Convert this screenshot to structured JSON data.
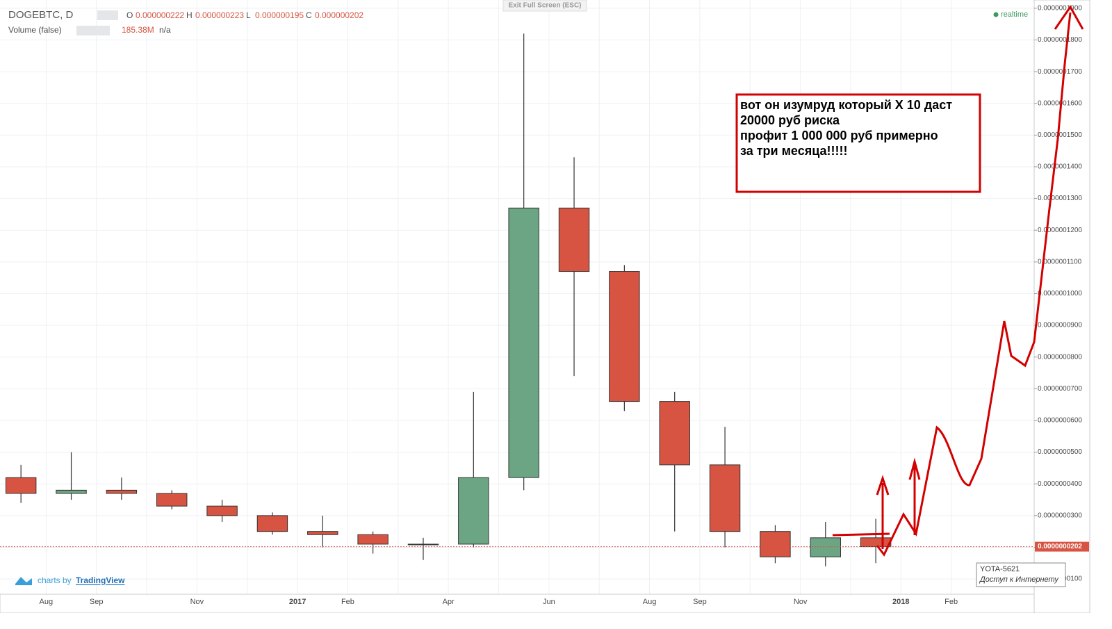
{
  "chart_data": {
    "type": "candlestick",
    "categories": [
      null,
      "Aug",
      "Sep",
      null,
      "Nov",
      null,
      "2017",
      "Feb",
      null,
      "Apr",
      null,
      "Jun",
      null,
      "Aug",
      "Sep",
      null,
      "Nov",
      null,
      "2018",
      "Feb"
    ],
    "open": [
      4.2e-08,
      3.7e-08,
      3.8e-08,
      3.7e-08,
      3.3e-08,
      3e-08,
      2.5e-08,
      2.4e-08,
      2.1e-08,
      2.1e-08,
      4.2e-08,
      1.27e-07,
      1.07e-07,
      6.6e-08,
      4.6e-08,
      2.5e-08,
      1.7e-08,
      2.3e-08,
      null,
      null
    ],
    "high": [
      4.6e-08,
      5e-08,
      4.2e-08,
      3.8e-08,
      3.5e-08,
      3.1e-08,
      3e-08,
      2.5e-08,
      2.3e-08,
      6.9e-08,
      1.82e-07,
      1.43e-07,
      1.09e-07,
      6.9e-08,
      5.8e-08,
      2.7e-08,
      2.8e-08,
      2.9e-08,
      null,
      null
    ],
    "low": [
      3.4e-08,
      3.5e-08,
      3.5e-08,
      3.2e-08,
      2.8e-08,
      2.4e-08,
      2e-08,
      1.8e-08,
      1.6e-08,
      2e-08,
      3.8e-08,
      7.4e-08,
      6.3e-08,
      2.5e-08,
      2e-08,
      1.5e-08,
      1.4e-08,
      1.5e-08,
      null,
      null
    ],
    "close": [
      3.7e-08,
      3.8e-08,
      3.7e-08,
      3.3e-08,
      3e-08,
      2.5e-08,
      2.4e-08,
      2.1e-08,
      2.1e-08,
      4.2e-08,
      1.27e-07,
      1.07e-07,
      6.6e-08,
      4.6e-08,
      2.5e-08,
      1.7e-08,
      2.3e-08,
      2.02e-08,
      null,
      null
    ],
    "up_color": "#6ba583",
    "down_color": "#d75442",
    "ylim": [
      5.2e-09,
      1.926e-07
    ],
    "yticks": [
      {
        "value": 1e-08,
        "label": "0.0000000100"
      },
      {
        "value": 2e-08,
        "label": "0.0000000200"
      },
      {
        "value": 3e-08,
        "label": "0.0000000300"
      },
      {
        "value": 4e-08,
        "label": "0.0000000400"
      },
      {
        "value": 5e-08,
        "label": "0.0000000500"
      },
      {
        "value": 6e-08,
        "label": "0.0000000600"
      },
      {
        "value": 7e-08,
        "label": "0.0000000700"
      },
      {
        "value": 8e-08,
        "label": "0.0000000800"
      },
      {
        "value": 9e-08,
        "label": "0.0000000900"
      },
      {
        "value": 1e-07,
        "label": "0.0000001000"
      },
      {
        "value": 1.1e-07,
        "label": "0.0000001100"
      },
      {
        "value": 1.2e-07,
        "label": "0.0000001200"
      },
      {
        "value": 1.3e-07,
        "label": "0.0000001300"
      },
      {
        "value": 1.4e-07,
        "label": "0.0000001400"
      },
      {
        "value": 1.5e-07,
        "label": "0.0000001500"
      },
      {
        "value": 1.6e-07,
        "label": "0.0000001600"
      },
      {
        "value": 1.7e-07,
        "label": "0.0000001700"
      },
      {
        "value": 1.8e-07,
        "label": "0.0000001800"
      },
      {
        "value": 1.9e-07,
        "label": "0.0000001900"
      }
    ],
    "grid": true,
    "last_price": {
      "value": 2.02e-08,
      "label": "0.0000000202"
    },
    "annotation": [
      "вот он изумруд  который Х 10 даст",
      "20000 руб риска",
      "профит 1 000 000 руб примерно",
      "за три месяца!!!!!"
    ]
  },
  "ui": {
    "symbol": "DOGEBTC, D",
    "ohlc": [
      {
        "key": "O",
        "value": "0.000000222"
      },
      {
        "key": "H",
        "value": "0.000000223"
      },
      {
        "key": "L",
        "value": "0.000000195"
      },
      {
        "key": "C",
        "value": "0.000000202"
      }
    ],
    "volume_label": "Volume (false)",
    "volume_value": "185.38M",
    "volume_extra": "n/a",
    "exit_button": "Exit Full Screen (ESC)",
    "realtime": "realtime",
    "branding": "charts by",
    "brand": "TradingView",
    "tooltip_title": "YOTA-5621",
    "tooltip_text": "Доступ к Интернету"
  }
}
